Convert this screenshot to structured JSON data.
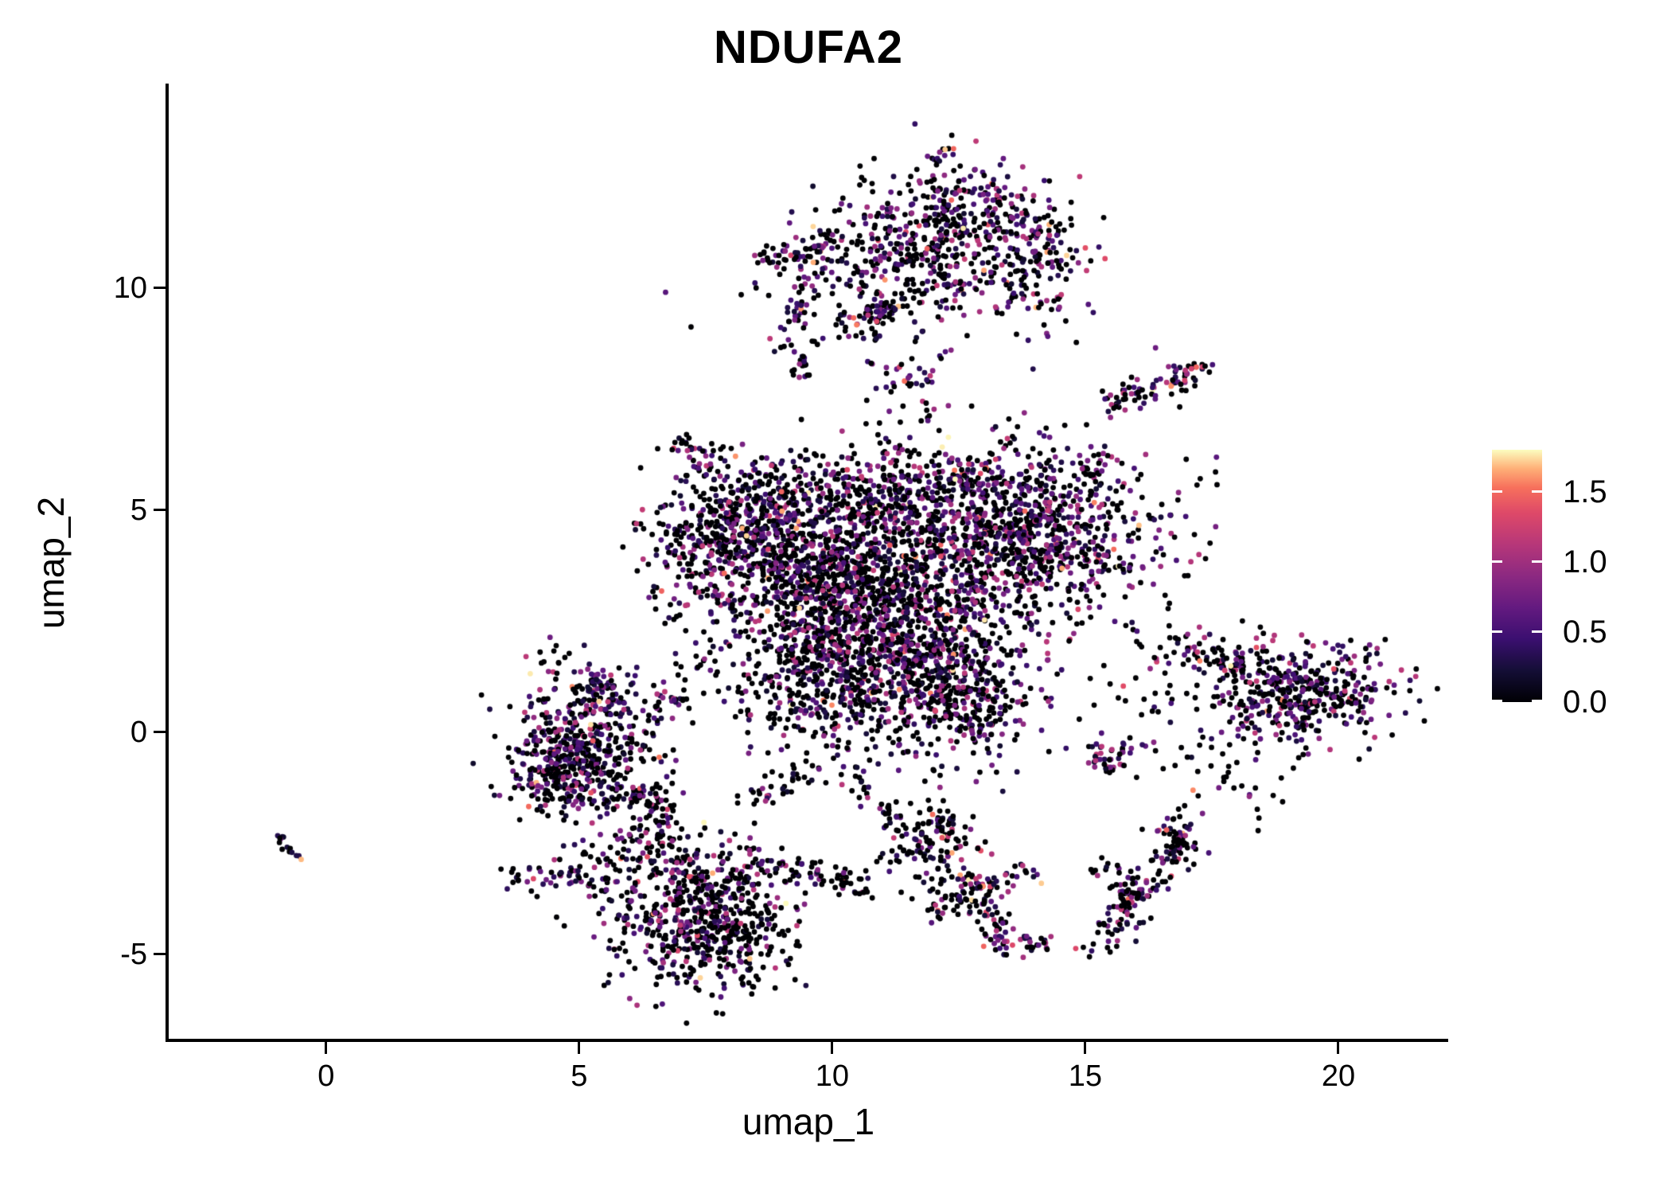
{
  "title": "NDUFA2",
  "chart_data": {
    "type": "scatter",
    "title": "NDUFA2",
    "xlabel": "umap_1",
    "ylabel": "umap_2",
    "xlim": [
      -3.11,
      22.17
    ],
    "ylim": [
      -6.9,
      14.6
    ],
    "x_ticks": [
      0,
      5,
      10,
      15,
      20
    ],
    "x_tick_labels": [
      "0",
      "5",
      "10",
      "15",
      "20"
    ],
    "y_ticks": [
      -5,
      0,
      5,
      10
    ],
    "y_tick_labels": [
      "-5",
      "0",
      "5",
      "10"
    ],
    "grid": false,
    "legend_position": "right",
    "point_radius_px": 3.4,
    "n_points": 8150,
    "seed": 42,
    "color_scale": {
      "name": "magma",
      "domain": [
        0,
        1.8
      ],
      "legend_ticks": [
        0,
        0.5,
        1,
        1.5
      ],
      "legend_tick_labels": [
        "0.0",
        "0.5",
        "1.0",
        "1.5"
      ],
      "stops": [
        [
          0.0,
          "#000004"
        ],
        [
          0.125,
          "#140e36"
        ],
        [
          0.25,
          "#3b0f70"
        ],
        [
          0.375,
          "#641a80"
        ],
        [
          0.5,
          "#8c2981"
        ],
        [
          0.625,
          "#b73779"
        ],
        [
          0.75,
          "#de4968"
        ],
        [
          0.85,
          "#f7705c"
        ],
        [
          0.925,
          "#feaf77"
        ],
        [
          1.0,
          "#fcfdbf"
        ]
      ]
    },
    "clusters": [
      {
        "name": "central-left",
        "kind": "blob",
        "cx": 8.3,
        "cy": 4.5,
        "sx": 0.95,
        "sy": 0.85,
        "n": 650,
        "p0": 0.52,
        "hot": 0.03
      },
      {
        "name": "central-mid",
        "kind": "blob",
        "cx": 10.4,
        "cy": 3.3,
        "sx": 1.15,
        "sy": 1.05,
        "n": 950,
        "p0": 0.56,
        "hot": 0.03
      },
      {
        "name": "central-low",
        "kind": "blob",
        "cx": 11.7,
        "cy": 1.6,
        "sx": 1.05,
        "sy": 1.0,
        "n": 800,
        "p0": 0.52,
        "hot": 0.04
      },
      {
        "name": "central-right",
        "kind": "blob",
        "cx": 13.7,
        "cy": 4.4,
        "sx": 1.15,
        "sy": 0.95,
        "n": 950,
        "p0": 0.48,
        "hot": 0.03
      },
      {
        "name": "central-top",
        "kind": "blob",
        "cx": 11.2,
        "cy": 5.4,
        "sx": 1.4,
        "sy": 0.6,
        "n": 380,
        "p0": 0.5,
        "hot": 0.04
      },
      {
        "name": "central-lowleft",
        "kind": "blob",
        "cx": 9.5,
        "cy": 1.3,
        "sx": 0.8,
        "sy": 0.9,
        "n": 320,
        "p0": 0.56,
        "hot": 0.03
      },
      {
        "name": "central-appendage",
        "kind": "blob",
        "cx": 12.9,
        "cy": 0.5,
        "sx": 0.5,
        "sy": 0.4,
        "n": 120,
        "p0": 0.5,
        "hot": 0.03
      },
      {
        "name": "central-right-tip",
        "kind": "blob",
        "cx": 15.0,
        "cy": 5.7,
        "sx": 0.3,
        "sy": 0.35,
        "n": 40,
        "p0": 0.45,
        "hot": 0.05
      },
      {
        "name": "central-top-bridge",
        "kind": "blob",
        "cx": 11.6,
        "cy": 7.7,
        "sx": 0.55,
        "sy": 0.6,
        "n": 55,
        "p0": 0.5,
        "hot": 0.06
      },
      {
        "name": "top-main",
        "kind": "blob",
        "cx": 11.9,
        "cy": 10.9,
        "sx": 1.25,
        "sy": 0.75,
        "n": 430,
        "p0": 0.5,
        "hot": 0.07
      },
      {
        "name": "top-upper",
        "kind": "blob",
        "cx": 12.7,
        "cy": 11.9,
        "sx": 0.8,
        "sy": 0.45,
        "n": 150,
        "p0": 0.5,
        "hot": 0.06
      },
      {
        "name": "top-right",
        "kind": "blob",
        "cx": 14.2,
        "cy": 10.4,
        "sx": 0.45,
        "sy": 0.8,
        "n": 110,
        "p0": 0.45,
        "hot": 0.08
      },
      {
        "name": "top-sparse",
        "kind": "blob",
        "cx": 11.0,
        "cy": 9.9,
        "sx": 1.5,
        "sy": 0.5,
        "n": 60,
        "p0": 0.62,
        "hot": 0.05
      },
      {
        "name": "right-main",
        "kind": "blob",
        "cx": 19.2,
        "cy": 0.9,
        "sx": 1.0,
        "sy": 0.58,
        "n": 430,
        "p0": 0.5,
        "hot": 0.05
      },
      {
        "name": "right-small-blob",
        "kind": "blob",
        "cx": 15.5,
        "cy": -0.6,
        "sx": 0.3,
        "sy": 0.25,
        "n": 40,
        "p0": 0.4,
        "hot": 0.12
      },
      {
        "name": "right-scatter",
        "kind": "blob",
        "cx": 17.7,
        "cy": -0.9,
        "sx": 0.8,
        "sy": 0.6,
        "n": 45,
        "p0": 0.78,
        "hot": 0.02
      },
      {
        "name": "bottom-main",
        "kind": "blob",
        "cx": 7.4,
        "cy": -4.4,
        "sx": 0.85,
        "sy": 0.7,
        "n": 520,
        "p0": 0.62,
        "hot": 0.02
      },
      {
        "name": "bottom-top-fringe",
        "kind": "blob",
        "cx": 6.9,
        "cy": -3.1,
        "sx": 1.0,
        "sy": 0.42,
        "n": 170,
        "p0": 0.5,
        "hot": 0.06
      },
      {
        "name": "bottom-right-blob",
        "kind": "blob",
        "cx": 12.0,
        "cy": -2.4,
        "sx": 0.5,
        "sy": 0.5,
        "n": 140,
        "p0": 0.5,
        "hot": 0.05
      },
      {
        "name": "bottom-left-blob",
        "kind": "blob",
        "cx": 5.0,
        "cy": -3.3,
        "sx": 0.5,
        "sy": 0.3,
        "n": 40,
        "p0": 0.5,
        "hot": 0.08
      },
      {
        "name": "bottom-tiny-blob",
        "kind": "blob",
        "cx": 3.9,
        "cy": -3.35,
        "sx": 0.25,
        "sy": 0.2,
        "n": 15,
        "p0": 0.5,
        "hot": 0.1
      },
      {
        "name": "left-main",
        "kind": "blob",
        "cx": 5.1,
        "cy": -0.6,
        "sx": 0.72,
        "sy": 0.72,
        "n": 480,
        "p0": 0.52,
        "hot": 0.05
      },
      {
        "name": "left-top",
        "kind": "blob",
        "cx": 5.4,
        "cy": 0.9,
        "sx": 0.42,
        "sy": 0.33,
        "n": 90,
        "p0": 0.48,
        "hot": 0.08
      },
      {
        "name": "left-west-edge",
        "kind": "blob",
        "cx": 4.4,
        "cy": -0.5,
        "sx": 0.3,
        "sy": 0.5,
        "n": 70,
        "p0": 0.45,
        "hot": 0.08
      },
      {
        "name": "left-top-scatter",
        "kind": "blob",
        "cx": 4.5,
        "cy": 1.6,
        "sx": 0.35,
        "sy": 0.3,
        "n": 14,
        "p0": 0.6,
        "hot": 0.05
      },
      {
        "name": "gap-left-bottom",
        "kind": "blob",
        "cx": 6.3,
        "cy": -2.2,
        "sx": 0.5,
        "sy": 0.45,
        "n": 50,
        "p0": 0.62,
        "hot": 0.03
      },
      {
        "name": "gap-central-right",
        "kind": "blob",
        "cx": 16.3,
        "cy": 1.2,
        "sx": 0.65,
        "sy": 0.9,
        "n": 45,
        "p0": 0.72,
        "hot": 0.03
      },
      {
        "name": "gap-right-upper",
        "kind": "blob",
        "cx": 16.7,
        "cy": 4.9,
        "sx": 0.55,
        "sy": 1.1,
        "n": 28,
        "p0": 0.65,
        "hot": 0.04
      },
      {
        "name": "gap-left-central",
        "kind": "blob",
        "cx": 7.1,
        "cy": 2.9,
        "sx": 0.5,
        "sy": 0.75,
        "n": 45,
        "p0": 0.56,
        "hot": 0.04
      },
      {
        "name": "lower-right-chain-top",
        "kind": "blob",
        "cx": 16.8,
        "cy": -2.4,
        "sx": 0.3,
        "sy": 0.3,
        "n": 30,
        "p0": 0.5,
        "hot": 0.06
      },
      {
        "name": "central-arm-upleft",
        "kind": "seg",
        "x1": 6.9,
        "y1": 6.7,
        "x2": 7.7,
        "y2": 5.8,
        "j": 0.13,
        "n": 26,
        "p0": 0.4,
        "hot": 0.1
      },
      {
        "name": "central-bridge-streak",
        "kind": "seg",
        "x1": 9.3,
        "y1": 8.0,
        "x2": 9.6,
        "y2": 8.9,
        "j": 0.12,
        "n": 22,
        "p0": 0.45,
        "hot": 0.08
      },
      {
        "name": "top-left-arm",
        "kind": "seg",
        "x1": 8.7,
        "y1": 10.7,
        "x2": 10.2,
        "y2": 11.0,
        "j": 0.16,
        "n": 60,
        "p0": 0.45,
        "hot": 0.1
      },
      {
        "name": "top-arm-down-1",
        "kind": "seg",
        "x1": 8.95,
        "y1": 8.6,
        "x2": 9.5,
        "y2": 9.9,
        "j": 0.12,
        "n": 30,
        "p0": 0.45,
        "hot": 0.12
      },
      {
        "name": "top-arm-down-2",
        "kind": "seg",
        "x1": 10.75,
        "y1": 8.9,
        "x2": 11.1,
        "y2": 9.6,
        "j": 0.12,
        "n": 20,
        "p0": 0.5,
        "hot": 0.05
      },
      {
        "name": "top-bottom-arc",
        "kind": "seg",
        "x1": 10.2,
        "y1": 9.1,
        "x2": 11.3,
        "y2": 9.7,
        "j": 0.15,
        "n": 40,
        "p0": 0.5,
        "hot": 0.05
      },
      {
        "name": "top-tip",
        "kind": "seg",
        "x1": 12.0,
        "y1": 12.8,
        "x2": 12.3,
        "y2": 13.25,
        "j": 0.1,
        "n": 14,
        "p0": 0.4,
        "hot": 0.12
      },
      {
        "name": "right-top-diagonal",
        "kind": "seg",
        "x1": 15.4,
        "y1": 7.4,
        "x2": 17.3,
        "y2": 8.1,
        "j": 0.15,
        "n": 85,
        "p0": 0.45,
        "hot": 0.15
      },
      {
        "name": "right-arm-upleft",
        "kind": "seg",
        "x1": 16.8,
        "y1": 2.1,
        "x2": 18.2,
        "y2": 1.3,
        "j": 0.15,
        "n": 55,
        "p0": 0.45,
        "hot": 0.06
      },
      {
        "name": "lower-right-chain",
        "kind": "seg",
        "x1": 15.2,
        "y1": -4.9,
        "x2": 16.9,
        "y2": -2.3,
        "j": 0.2,
        "n": 120,
        "p0": 0.55,
        "hot": 0.06
      },
      {
        "name": "lower-right-branch",
        "kind": "seg",
        "x1": 15.2,
        "y1": -3.0,
        "x2": 16.1,
        "y2": -3.8,
        "j": 0.15,
        "n": 40,
        "p0": 0.5,
        "hot": 0.08
      },
      {
        "name": "bottom-arc",
        "kind": "seg",
        "x1": 8.7,
        "y1": -3.0,
        "x2": 10.7,
        "y2": -3.5,
        "j": 0.18,
        "n": 70,
        "p0": 0.55,
        "hot": 0.06
      },
      {
        "name": "bottom-v-branch-1",
        "kind": "seg",
        "x1": 12.6,
        "y1": -3.3,
        "x2": 13.5,
        "y2": -4.9,
        "j": 0.18,
        "n": 80,
        "p0": 0.45,
        "hot": 0.13
      },
      {
        "name": "bottom-v-branch-2",
        "kind": "seg",
        "x1": 12.7,
        "y1": -3.5,
        "x2": 13.9,
        "y2": -3.2,
        "j": 0.15,
        "n": 35,
        "p0": 0.45,
        "hot": 0.12
      },
      {
        "name": "bottom-h-streak",
        "kind": "seg",
        "x1": 13.6,
        "y1": -4.85,
        "x2": 14.3,
        "y2": -4.7,
        "j": 0.1,
        "n": 18,
        "p0": 0.3,
        "hot": 0.25
      },
      {
        "name": "bottom-downleft-streak",
        "kind": "seg",
        "x1": 11.9,
        "y1": -4.2,
        "x2": 12.5,
        "y2": -3.6,
        "j": 0.12,
        "n": 25,
        "p0": 0.45,
        "hot": 0.08
      },
      {
        "name": "left-tail",
        "kind": "seg",
        "x1": 6.1,
        "y1": -1.4,
        "x2": 6.9,
        "y2": -1.8,
        "j": 0.12,
        "n": 40,
        "p0": 0.5,
        "hot": 0.05
      },
      {
        "name": "far-left-streak",
        "kind": "seg",
        "x1": -1.05,
        "y1": -2.35,
        "x2": -0.45,
        "y2": -2.85,
        "j": 0.07,
        "n": 14,
        "p0": 0.35,
        "hot": 0.3
      },
      {
        "name": "gap-central-bottom-1",
        "kind": "seg",
        "x1": 8.3,
        "y1": -1.5,
        "x2": 9.7,
        "y2": -0.85,
        "j": 0.15,
        "n": 35,
        "p0": 0.6,
        "hot": 0.04
      },
      {
        "name": "gap-central-bottom-2",
        "kind": "seg",
        "x1": 10.4,
        "y1": -0.9,
        "x2": 11.3,
        "y2": -2.1,
        "j": 0.15,
        "n": 30,
        "p0": 0.62,
        "hot": 0.04
      },
      {
        "name": "gap-left-central-2",
        "kind": "seg",
        "x1": 6.6,
        "y1": 0.3,
        "x2": 7.0,
        "y2": 0.9,
        "j": 0.15,
        "n": 25,
        "p0": 0.6,
        "hot": 0.04
      }
    ]
  },
  "style": {
    "background": "#ffffff",
    "axis_color": "#000000",
    "text_color": "#000000"
  }
}
